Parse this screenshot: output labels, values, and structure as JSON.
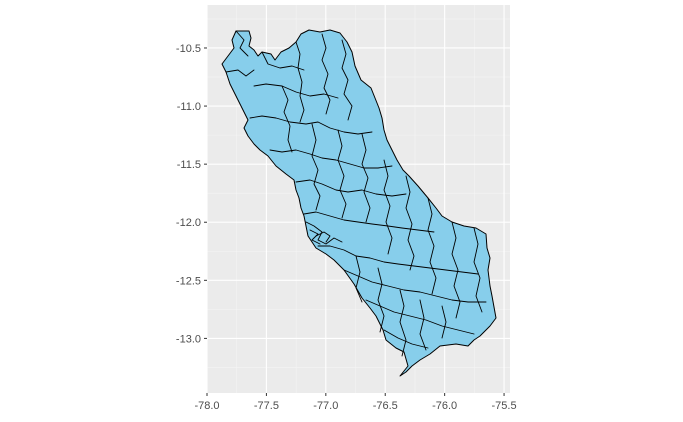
{
  "chart_data": {
    "type": "map",
    "title": "",
    "xlabel": "",
    "ylabel": "",
    "xlim": [
      -78.0,
      -75.45
    ],
    "ylim": [
      -13.47,
      -10.13
    ],
    "x_ticks": [
      -78.0,
      -77.5,
      -77.0,
      -76.5,
      -76.0,
      -75.5
    ],
    "x_tick_labels": [
      "-78.0",
      "-77.5",
      "-77.0",
      "-76.5",
      "-76.0",
      "-75.5"
    ],
    "y_ticks": [
      -10.5,
      -11.0,
      -11.5,
      -12.0,
      -12.5,
      -13.0
    ],
    "y_tick_labels": [
      "-10.5",
      "-11.0",
      "-11.5",
      "-12.0",
      "-12.5",
      "-13.0"
    ],
    "grid": true,
    "legend": "none",
    "panel_background": "#ebebeb",
    "fill_color": "#87ceeb",
    "border_color": "#000000"
  }
}
